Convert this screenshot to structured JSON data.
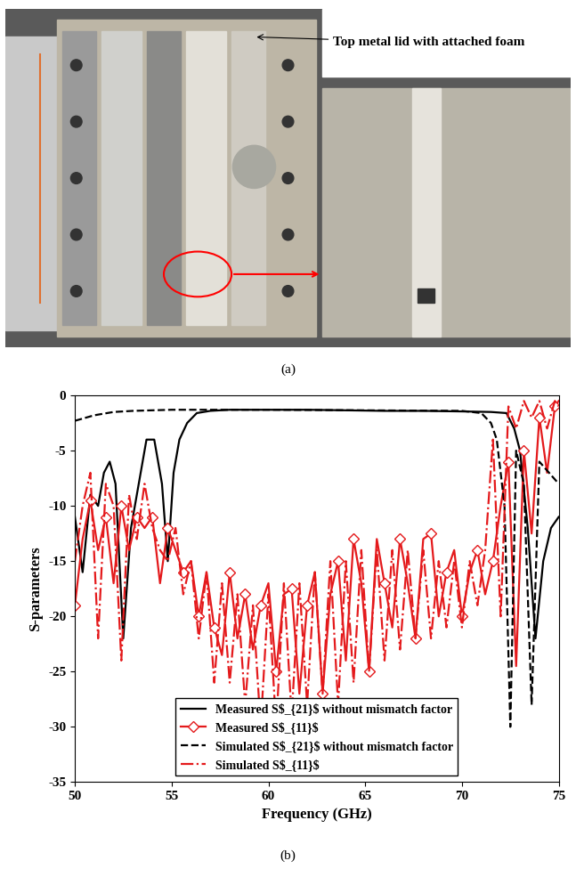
{
  "photo": {
    "annotation": "Top metal lid with attached foam",
    "caption": "(a)"
  },
  "chart_data": {
    "type": "line",
    "caption": "(b)",
    "x_label": "Frequency (GHz)",
    "y_label": "S-parameters",
    "xlim": [
      50,
      75
    ],
    "xticks": [
      50,
      55,
      60,
      65,
      70,
      75
    ],
    "ylim": [
      -35,
      0
    ],
    "yticks": [
      -35,
      -30,
      -25,
      -20,
      -15,
      -10,
      -5,
      0
    ],
    "grid": false,
    "legend": "lower center",
    "series": [
      {
        "name": "Measured S$_{21}$ without mismatch factor",
        "color": "#000000",
        "line_style": "solid",
        "marker": "none",
        "x": [
          50.0,
          50.4,
          50.8,
          51.2,
          51.5,
          51.8,
          52.1,
          52.5,
          52.9,
          53.3,
          53.7,
          54.1,
          54.5,
          54.8,
          55.1,
          55.4,
          55.8,
          56.3,
          57.0,
          58.0,
          60.0,
          62.0,
          64.0,
          66.0,
          68.0,
          70.0,
          71.5,
          72.3,
          72.7,
          73.0,
          73.4,
          73.8,
          74.2,
          74.6,
          75.0
        ],
        "values": [
          -11,
          -16,
          -9,
          -10,
          -7,
          -6,
          -8,
          -22,
          -12,
          -8,
          -4,
          -4,
          -8,
          -15,
          -7,
          -4,
          -2.5,
          -1.6,
          -1.4,
          -1.3,
          -1.3,
          -1.3,
          -1.35,
          -1.4,
          -1.4,
          -1.45,
          -1.5,
          -1.6,
          -3,
          -5,
          -12,
          -22,
          -15,
          -12,
          -11
        ]
      },
      {
        "name": "Measured S$_{11}$",
        "color": "#e41a1c",
        "line_style": "solid",
        "marker": "D",
        "x": [
          50.0,
          50.4,
          50.8,
          51.2,
          51.6,
          52.0,
          52.4,
          52.8,
          53.2,
          53.6,
          54.0,
          54.4,
          54.8,
          55.2,
          55.6,
          56.0,
          56.4,
          56.8,
          57.2,
          57.6,
          58.0,
          58.4,
          58.8,
          59.2,
          59.6,
          60.0,
          60.4,
          60.8,
          61.2,
          61.6,
          62.0,
          62.4,
          62.8,
          63.2,
          63.6,
          64.0,
          64.4,
          64.8,
          65.2,
          65.6,
          66.0,
          66.4,
          66.8,
          67.2,
          67.6,
          68.0,
          68.4,
          68.8,
          69.2,
          69.6,
          70.0,
          70.4,
          70.8,
          71.2,
          71.6,
          72.0,
          72.4,
          72.8,
          73.2,
          73.6,
          74.0,
          74.4,
          74.8,
          75.0
        ],
        "values": [
          -19,
          -13,
          -9.5,
          -14,
          -11,
          -17,
          -10,
          -14,
          -11,
          -12,
          -11,
          -17,
          -12,
          -14,
          -16,
          -15,
          -20,
          -16,
          -21,
          -23.5,
          -16,
          -22,
          -18,
          -23,
          -19,
          -17,
          -25,
          -18,
          -17.5,
          -27,
          -19,
          -16,
          -27,
          -18,
          -15,
          -24,
          -13,
          -17,
          -25,
          -13,
          -17,
          -21,
          -13,
          -17,
          -22,
          -13,
          -12.5,
          -20,
          -16,
          -14,
          -20,
          -16,
          -14,
          -18,
          -15,
          -10,
          -6,
          -24.5,
          -5,
          -12.5,
          -2,
          -7,
          -1,
          -0.5
        ]
      },
      {
        "name": "Simulated S$_{21}$ without mismatch factor",
        "color": "#000000",
        "line_style": "dashed",
        "marker": "none",
        "x": [
          50.0,
          51.0,
          52.0,
          53.0,
          55.0,
          60.0,
          65.0,
          70.0,
          71.0,
          71.5,
          71.8,
          72.2,
          72.5,
          72.8,
          73.2,
          73.6,
          74.0,
          74.5,
          75.0
        ],
        "values": [
          -2.3,
          -1.8,
          -1.5,
          -1.4,
          -1.3,
          -1.3,
          -1.35,
          -1.4,
          -1.6,
          -2.5,
          -4,
          -10,
          -30,
          -5,
          -8,
          -28,
          -6,
          -7,
          -8
        ]
      },
      {
        "name": "Simulated S$_{11}$",
        "color": "#e41a1c",
        "line_style": "dashdot",
        "marker": "none",
        "x": [
          50.0,
          50.4,
          50.8,
          51.2,
          51.6,
          52.0,
          52.4,
          52.8,
          53.2,
          53.6,
          54.0,
          54.4,
          54.8,
          55.2,
          55.6,
          56.0,
          56.4,
          56.8,
          57.2,
          57.6,
          58.0,
          58.4,
          58.8,
          59.2,
          59.6,
          60.0,
          60.4,
          60.8,
          61.2,
          61.6,
          62.0,
          62.4,
          62.8,
          63.2,
          63.6,
          64.0,
          64.4,
          64.8,
          65.2,
          65.6,
          66.0,
          66.4,
          66.8,
          67.2,
          67.6,
          68.0,
          68.4,
          68.8,
          69.2,
          69.6,
          70.0,
          70.4,
          70.8,
          71.2,
          71.6,
          72.0,
          72.4,
          72.8,
          73.2,
          73.6,
          74.0,
          74.4,
          74.8,
          75.0
        ],
        "values": [
          -15,
          -10,
          -7,
          -22,
          -8,
          -10,
          -24,
          -9,
          -13,
          -8,
          -12,
          -14,
          -15,
          -12,
          -18,
          -15,
          -22,
          -16,
          -26,
          -17,
          -26,
          -18,
          -28,
          -19,
          -30,
          -18,
          -30,
          -17,
          -29,
          -17,
          -28,
          -16,
          -27,
          -15,
          -28,
          -15,
          -26,
          -14,
          -25,
          -14,
          -24,
          -14,
          -23,
          -14,
          -22,
          -14,
          -22,
          -15,
          -21,
          -15,
          -21,
          -15,
          -19,
          -14,
          -4,
          -20,
          -1,
          -3,
          -0.5,
          -2,
          -0.5,
          -3,
          -0.5,
          -1
        ]
      }
    ]
  }
}
